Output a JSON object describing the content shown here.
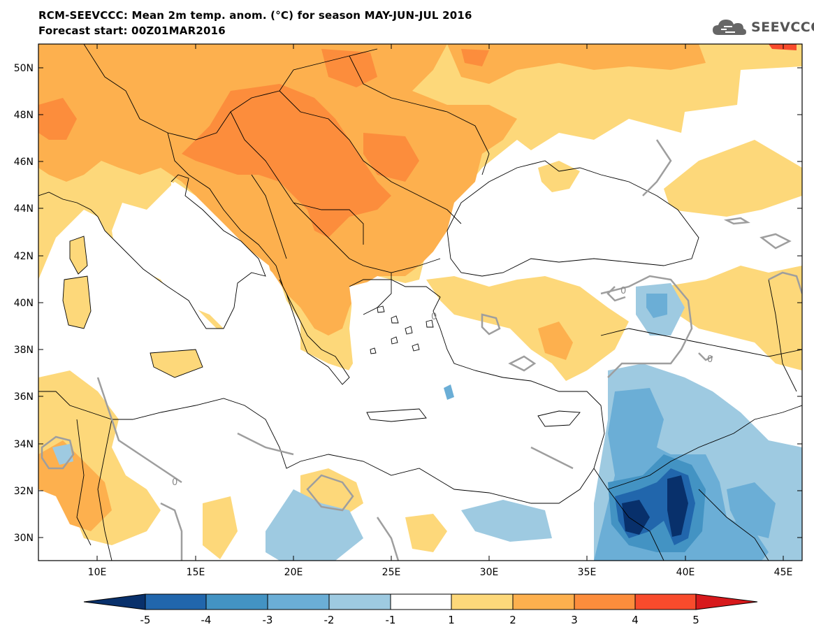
{
  "title": {
    "line1": "RCM-SEEVCCC: Mean 2m temp. anom. (°C) for season MAY-JUN-JUL 2016",
    "line2": "Forecast start: 00Z01MAR2016"
  },
  "logo": {
    "text": "SEEVCCC",
    "icon": "cloud-icon"
  },
  "map": {
    "lat_labels": [
      "50N",
      "48N",
      "46N",
      "44N",
      "42N",
      "40N",
      "38N",
      "36N",
      "34N",
      "32N",
      "30N"
    ],
    "lon_labels": [
      "10E",
      "15E",
      "20E",
      "25E",
      "30E",
      "35E",
      "40E",
      "45E"
    ],
    "contour_label": "0"
  },
  "colorbar": {
    "labels": [
      "-5",
      "-4",
      "-3",
      "-2",
      "-1",
      "1",
      "2",
      "3",
      "4",
      "5"
    ],
    "colors": [
      "#08306b",
      "#2166ac",
      "#4393c3",
      "#6baed6",
      "#9ecae1",
      "#ffffff",
      "#fdd87a",
      "#fdb04e",
      "#fc8d3c",
      "#f84b2c",
      "#d7191c"
    ]
  }
}
